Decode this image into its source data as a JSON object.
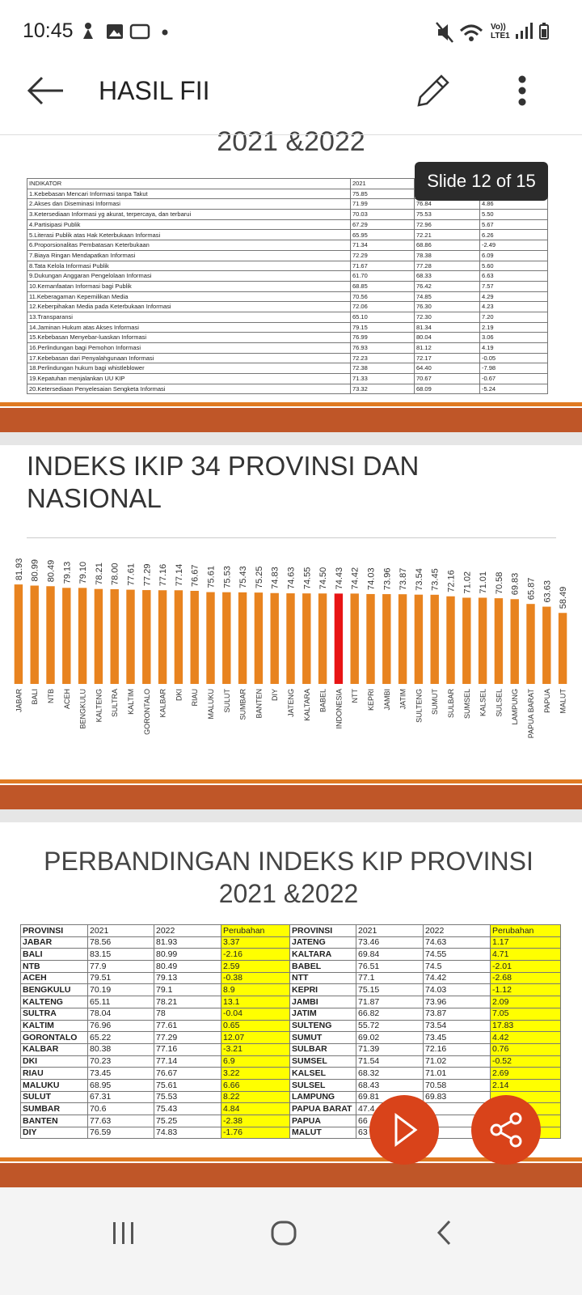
{
  "status_bar": {
    "time": "10:45",
    "volte": "Vo))",
    "lte": "LTE1"
  },
  "app_bar": {
    "title": "HASIL FII"
  },
  "slide_indicator": "Slide 12 of 15",
  "indicator_slide": {
    "title_fragment": "2021 &2022",
    "table": {
      "header": [
        "INDIKATOR",
        "2021"
      ],
      "rows": [
        [
          "1.Kebebasan Mencari Informasi tanpa Takut",
          "75.85"
        ],
        [
          "2.Akses dan Diseminasi Informasi",
          "71.99",
          "76.84",
          "4.86"
        ],
        [
          "3.Ketersediaan Informasi yg akurat, terpercaya, dan terbarui",
          "70.03",
          "75.53",
          "5.50"
        ],
        [
          "4.Partisipasi Publik",
          "67.29",
          "72.96",
          "5.67"
        ],
        [
          "5.Literasi Publik atas Hak Keterbukaan Informasi",
          "65.95",
          "72.21",
          "6.26"
        ],
        [
          "6.Proporsionalitas Pembatasan Keterbukaan",
          "71.34",
          "68.86",
          "-2.49"
        ],
        [
          "7.Biaya Ringan Mendapatkan Informasi",
          "72.29",
          "78.38",
          "6.09"
        ],
        [
          "8.Tata Kelola Informasi Publik",
          "71.67",
          "77.28",
          "5.60"
        ],
        [
          "9.Dukungan Anggaran Pengelolaan Informasi",
          "61.70",
          "68.33",
          "6.63"
        ],
        [
          "10.Kemanfaatan Informasi bagi Publik",
          "68.85",
          "76.42",
          "7.57"
        ],
        [
          "11.Keberagaman Kepemilikan Media",
          "70.56",
          "74.85",
          "4.29"
        ],
        [
          "12.Keberpihakan Media pada Keterbukaan Informasi",
          "72.06",
          "76.30",
          "4.23"
        ],
        [
          "13.Transparansi",
          "65.10",
          "72.30",
          "7.20"
        ],
        [
          "14.Jaminan Hukum atas Akses Informasi",
          "79.15",
          "81.34",
          "2.19"
        ],
        [
          "15.Kebebasan Menyebar-luaskan Informasi",
          "76.99",
          "80.04",
          "3.06"
        ],
        [
          "16.Perlindungan bagi Pemohon Informasi",
          "76.93",
          "81.12",
          "4.19"
        ],
        [
          "17.Kebebasan dari Penyalahgunaan Informasi",
          "72.23",
          "72.17",
          "-0.05"
        ],
        [
          "18.Perlindungan hukum bagi whistleblower",
          "72.38",
          "64.40",
          "-7.98"
        ],
        [
          "19.Kepatuhan menjalankan UU KIP",
          "71.33",
          "70.67",
          "-0.67"
        ],
        [
          "20.Ketersediaan Penyelesaian Sengketa Informasi",
          "73.32",
          "68.09",
          "-5.24"
        ]
      ]
    }
  },
  "chart_data": {
    "type": "bar",
    "title": "INDEKS IKIP 34 PROVINSI DAN NASIONAL",
    "categories": [
      "JABAR",
      "BALI",
      "NTB",
      "ACEH",
      "BENGKULU",
      "KALTENG",
      "SULTRA",
      "KALTIM",
      "GORONTALO",
      "KALBAR",
      "DKI",
      "RIAU",
      "MALUKU",
      "SULUT",
      "SUMBAR",
      "BANTEN",
      "DIY",
      "JATENG",
      "KALTARA",
      "BABEL",
      "INDONESIA",
      "NTT",
      "KEPRI",
      "JAMBI",
      "JATIM",
      "SULTENG",
      "SUMUT",
      "SULBAR",
      "SUMSEL",
      "KALSEL",
      "SULSEL",
      "LAMPUNG",
      "PAPUA BARAT",
      "PAPUA",
      "MALUT"
    ],
    "values": [
      81.93,
      80.99,
      80.49,
      79.13,
      79.1,
      78.21,
      78.0,
      77.61,
      77.29,
      77.16,
      77.14,
      76.67,
      75.61,
      75.53,
      75.43,
      75.25,
      74.83,
      74.63,
      74.55,
      74.5,
      74.43,
      74.42,
      74.03,
      73.96,
      73.87,
      73.54,
      73.45,
      72.16,
      71.02,
      71.01,
      70.58,
      69.83,
      65.87,
      63.63,
      58.49
    ],
    "value_labels": [
      "81.93",
      "80.99",
      "80.49",
      "79.13",
      "79.10",
      "78.21",
      "78.00",
      "77.61",
      "77.29",
      "77.16",
      "77.14",
      "76.67",
      "75.61",
      "75.53",
      "75.43",
      "75.25",
      "74.83",
      "74.63",
      "74.55",
      "74.50",
      "74.43",
      "74.42",
      "74.03",
      "73.96",
      "73.87",
      "73.54",
      "73.45",
      "72.16",
      "71.02",
      "71.01",
      "70.58",
      "69.83",
      "65.87",
      "63.63",
      "58.49"
    ],
    "colors": [
      "#e8831f",
      "#e8831f",
      "#e8831f",
      "#e8831f",
      "#e8831f",
      "#e8831f",
      "#e8831f",
      "#e8831f",
      "#e8831f",
      "#e8831f",
      "#e8831f",
      "#e8831f",
      "#e8831f",
      "#e8831f",
      "#e8831f",
      "#e8831f",
      "#e8831f",
      "#e8831f",
      "#e8831f",
      "#e8831f",
      "#e81414",
      "#e8831f",
      "#e8831f",
      "#e8831f",
      "#e8831f",
      "#e8831f",
      "#e8831f",
      "#e8831f",
      "#e8831f",
      "#e8831f",
      "#e8831f",
      "#e8831f",
      "#e8831f",
      "#e8831f",
      "#e8831f"
    ],
    "ylim": [
      0,
      100
    ]
  },
  "province_slide": {
    "title": [
      "PERBANDINGAN INDEKS KIP PROVINSI",
      "2021 &2022"
    ],
    "table": {
      "header": [
        "PROVINSI",
        "2021",
        "2022",
        "Perubahan",
        "PROVINSI",
        "2021",
        "2022",
        "Perubahan"
      ],
      "rows": [
        [
          "JABAR",
          "78.56",
          "81.93",
          "3.37",
          "JATENG",
          "73.46",
          "74.63",
          "1.17"
        ],
        [
          "BALI",
          "83.15",
          "80.99",
          "-2.16",
          "KALTARA",
          "69.84",
          "74.55",
          "4.71"
        ],
        [
          "NTB",
          "77.9",
          "80.49",
          "2.59",
          "BABEL",
          "76.51",
          "74.5",
          "-2.01"
        ],
        [
          "ACEH",
          "79.51",
          "79.13",
          "-0.38",
          "NTT",
          "77.1",
          "74.42",
          "-2.68"
        ],
        [
          "BENGKULU",
          "70.19",
          "79.1",
          "8.9",
          "KEPRI",
          "75.15",
          "74.03",
          "-1.12"
        ],
        [
          "KALTENG",
          "65.11",
          "78.21",
          "13.1",
          "JAMBI",
          "71.87",
          "73.96",
          "2.09"
        ],
        [
          "SULTRA",
          "78.04",
          "78",
          "-0.04",
          "JATIM",
          "66.82",
          "73.87",
          "7.05"
        ],
        [
          "KALTIM",
          "76.96",
          "77.61",
          "0.65",
          "SULTENG",
          "55.72",
          "73.54",
          "17.83"
        ],
        [
          "GORONTALO",
          "65.22",
          "77.29",
          "12.07",
          "SUMUT",
          "69.02",
          "73.45",
          "4.42"
        ],
        [
          "KALBAR",
          "80.38",
          "77.16",
          "-3.21",
          "SULBAR",
          "71.39",
          "72.16",
          "0.76"
        ],
        [
          "DKI",
          "70.23",
          "77.14",
          "6.9",
          "SUMSEL",
          "71.54",
          "71.02",
          "-0.52"
        ],
        [
          "RIAU",
          "73.45",
          "76.67",
          "3.22",
          "KALSEL",
          "68.32",
          "71.01",
          "2.69"
        ],
        [
          "MALUKU",
          "68.95",
          "75.61",
          "6.66",
          "SULSEL",
          "68.43",
          "70.58",
          "2.14"
        ],
        [
          "SULUT",
          "67.31",
          "75.53",
          "8.22",
          "LAMPUNG",
          "69.81",
          "69.83"
        ],
        [
          "SUMBAR",
          "70.6",
          "75.43",
          "4.84",
          "PAPUA BARAT",
          "47.4"
        ],
        [
          "BANTEN",
          "77.63",
          "75.25",
          "-2.38",
          "PAPUA",
          "66"
        ],
        [
          "DIY",
          "76.59",
          "74.83",
          "-1.76",
          "MALUT",
          "63"
        ]
      ]
    }
  }
}
